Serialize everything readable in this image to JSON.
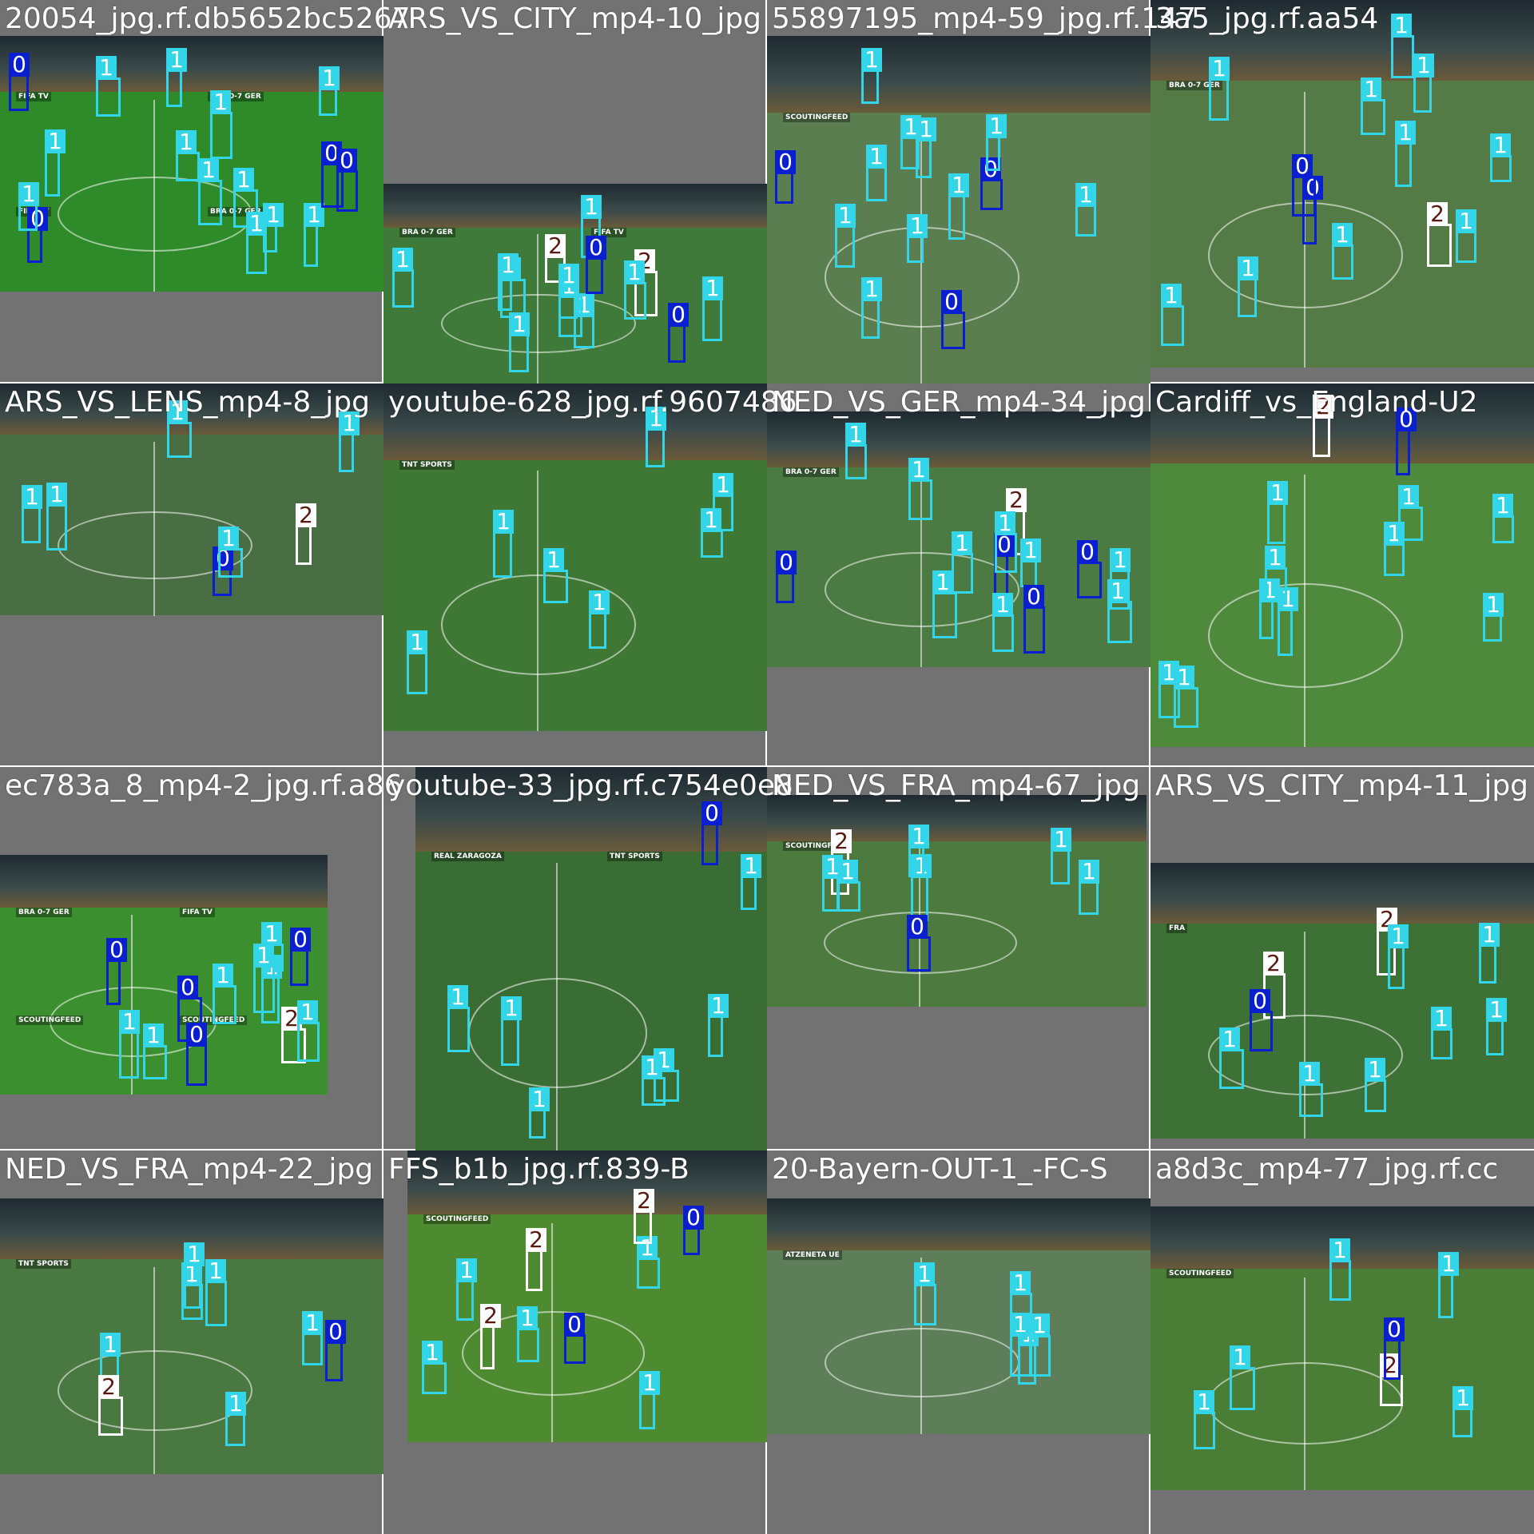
{
  "mosaic": {
    "tiles": [
      {
        "caption": "20054_jpg.rf.db5652bc5267",
        "overlays": [
          "FIFA TV",
          "BRA 0-7 GER",
          "FIFA TV",
          "BRA 0-7 GER"
        ],
        "boxes": [
          {
            "c": 0
          },
          {
            "c": 1
          },
          {
            "c": 1
          },
          {
            "c": 1
          },
          {
            "c": 1
          },
          {
            "c": 0
          },
          {
            "c": 1
          },
          {
            "c": 1
          },
          {
            "c": 1
          },
          {
            "c": 0
          },
          {
            "c": 1
          },
          {
            "c": 1
          },
          {
            "c": 1
          },
          {
            "c": 0
          },
          {
            "c": 1
          },
          {
            "c": 1
          }
        ]
      },
      {
        "caption": "ARS_VS_CITY_mp4-10_jpg",
        "overlays": [
          "BRA 0-7 GER",
          "FIFA TV"
        ],
        "boxes": [
          {
            "c": 1
          },
          {
            "c": 1
          },
          {
            "c": 0
          },
          {
            "c": 1
          },
          {
            "c": 2
          },
          {
            "c": 1
          },
          {
            "c": 1
          },
          {
            "c": 1
          },
          {
            "c": 1
          },
          {
            "c": 2
          },
          {
            "c": 1
          },
          {
            "c": 1
          },
          {
            "c": 0
          },
          {
            "c": 1
          }
        ]
      },
      {
        "caption": "55897195_mp4-59_jpg.rf.147",
        "overlays": [
          "SCOUTINGFEED"
        ],
        "boxes": [
          {
            "c": 1
          },
          {
            "c": 0
          },
          {
            "c": 1
          },
          {
            "c": 1
          },
          {
            "c": 1
          },
          {
            "c": 1
          },
          {
            "c": 0
          },
          {
            "c": 1
          },
          {
            "c": 1
          },
          {
            "c": 1
          },
          {
            "c": 1
          },
          {
            "c": 1
          },
          {
            "c": 0
          }
        ]
      },
      {
        "caption": "3a5_jpg.rf.aa54",
        "overlays": [
          "BRA 0-7 GER"
        ],
        "boxes": [
          {
            "c": 2
          },
          {
            "c": 1
          },
          {
            "c": 1
          },
          {
            "c": 1
          },
          {
            "c": 0
          },
          {
            "c": 1
          },
          {
            "c": 1
          },
          {
            "c": 1
          },
          {
            "c": 1
          },
          {
            "c": 0
          },
          {
            "c": 1
          },
          {
            "c": 1
          },
          {
            "c": 1
          }
        ]
      },
      {
        "caption": "ARS_VS_LENS_mp4-8_jpg",
        "overlays": [],
        "boxes": [
          {
            "c": 1
          },
          {
            "c": 1
          },
          {
            "c": 0
          },
          {
            "c": 1
          },
          {
            "c": 1
          },
          {
            "c": 1
          },
          {
            "c": 2
          }
        ]
      },
      {
        "caption": "youtube-628_jpg.rf.9607486",
        "overlays": [
          "TNT SPORTS"
        ],
        "boxes": [
          {
            "c": 1
          },
          {
            "c": 1
          },
          {
            "c": 1
          },
          {
            "c": 1
          },
          {
            "c": 1
          },
          {
            "c": 1
          },
          {
            "c": 1
          }
        ]
      },
      {
        "caption": "NED_VS_GER_mp4-34_jpg",
        "overlays": [
          "BRA 0-7 GER"
        ],
        "boxes": [
          {
            "c": 1
          },
          {
            "c": 0
          },
          {
            "c": 2
          },
          {
            "c": 1
          },
          {
            "c": 1
          },
          {
            "c": 0
          },
          {
            "c": 1
          },
          {
            "c": 0
          },
          {
            "c": 1
          },
          {
            "c": 1
          },
          {
            "c": 1
          },
          {
            "c": 1
          },
          {
            "c": 0
          },
          {
            "c": 1
          }
        ]
      },
      {
        "caption": "Cardiff_vs_England-U2",
        "overlays": [],
        "boxes": [
          {
            "c": 1
          },
          {
            "c": 1
          },
          {
            "c": 2
          },
          {
            "c": 1
          },
          {
            "c": 1
          },
          {
            "c": 0
          },
          {
            "c": 1
          },
          {
            "c": 1
          },
          {
            "c": 1
          },
          {
            "c": 1
          },
          {
            "c": 1
          },
          {
            "c": 1
          }
        ]
      },
      {
        "caption": "ec783a_8_mp4-2_jpg.rf.a86",
        "overlays": [
          "BRA 0-7 GER",
          "FIFA TV",
          "SCOUTINGFEED",
          "SCOUTINGFEED"
        ],
        "boxes": [
          {
            "c": 1
          },
          {
            "c": 0
          },
          {
            "c": 1
          },
          {
            "c": 0
          },
          {
            "c": 1
          },
          {
            "c": 2
          },
          {
            "c": 1
          },
          {
            "c": 0
          },
          {
            "c": 1
          },
          {
            "c": 0
          },
          {
            "c": 1
          },
          {
            "c": 1
          }
        ]
      },
      {
        "caption": "youtube-33_jpg.rf.c754e0e8",
        "overlays": [
          "REAL ZARAGOZA",
          "TNT SPORTS"
        ],
        "boxes": [
          {
            "c": 1
          },
          {
            "c": 1
          },
          {
            "c": 1
          },
          {
            "c": 1
          },
          {
            "c": 0
          },
          {
            "c": 1
          },
          {
            "c": 1
          },
          {
            "c": 1
          }
        ]
      },
      {
        "caption": "NED_VS_FRA_mp4-67_jpg",
        "overlays": [
          "SCOUTINGFEED"
        ],
        "boxes": [
          {
            "c": 1
          },
          {
            "c": 1
          },
          {
            "c": 0
          },
          {
            "c": 1
          },
          {
            "c": 2
          },
          {
            "c": 1
          },
          {
            "c": 1
          },
          {
            "c": 1
          }
        ]
      },
      {
        "caption": "ARS_VS_CITY_mp4-11_jpg",
        "overlays": [
          "FRA"
        ],
        "boxes": [
          {
            "c": 2
          },
          {
            "c": 1
          },
          {
            "c": 1
          },
          {
            "c": 2
          },
          {
            "c": 1
          },
          {
            "c": 1
          },
          {
            "c": 1
          },
          {
            "c": 0
          },
          {
            "c": 1
          },
          {
            "c": 1
          }
        ]
      },
      {
        "caption": "NED_VS_FRA_mp4-22_jpg",
        "overlays": [
          "TNT SPORTS"
        ],
        "boxes": [
          {
            "c": 1
          },
          {
            "c": 1
          },
          {
            "c": 1
          },
          {
            "c": 0
          },
          {
            "c": 1
          },
          {
            "c": 2
          },
          {
            "c": 1
          },
          {
            "c": 1
          }
        ]
      },
      {
        "caption": "FFS_b1b_jpg.rf.839-B",
        "overlays": [
          "SCOUTINGFEED"
        ],
        "boxes": [
          {
            "c": 1
          },
          {
            "c": 0
          },
          {
            "c": 2
          },
          {
            "c": 1
          },
          {
            "c": 2
          },
          {
            "c": 1
          },
          {
            "c": 2
          },
          {
            "c": 1
          },
          {
            "c": 0
          },
          {
            "c": 1
          }
        ]
      },
      {
        "caption": "20-Bayern-OUT-1_-FC-S",
        "overlays": [
          "ATZENETA UE"
        ],
        "boxes": [
          {
            "c": 1
          },
          {
            "c": 1
          },
          {
            "c": 1
          },
          {
            "c": 1
          },
          {
            "c": 1
          }
        ]
      },
      {
        "caption": "a8d3c_mp4-77_jpg.rf.cc",
        "overlays": [
          "SCOUTINGFEED"
        ],
        "boxes": [
          {
            "c": 1
          },
          {
            "c": 2
          },
          {
            "c": 0
          },
          {
            "c": 1
          },
          {
            "c": 1
          },
          {
            "c": 1
          },
          {
            "c": 1
          }
        ]
      }
    ]
  }
}
